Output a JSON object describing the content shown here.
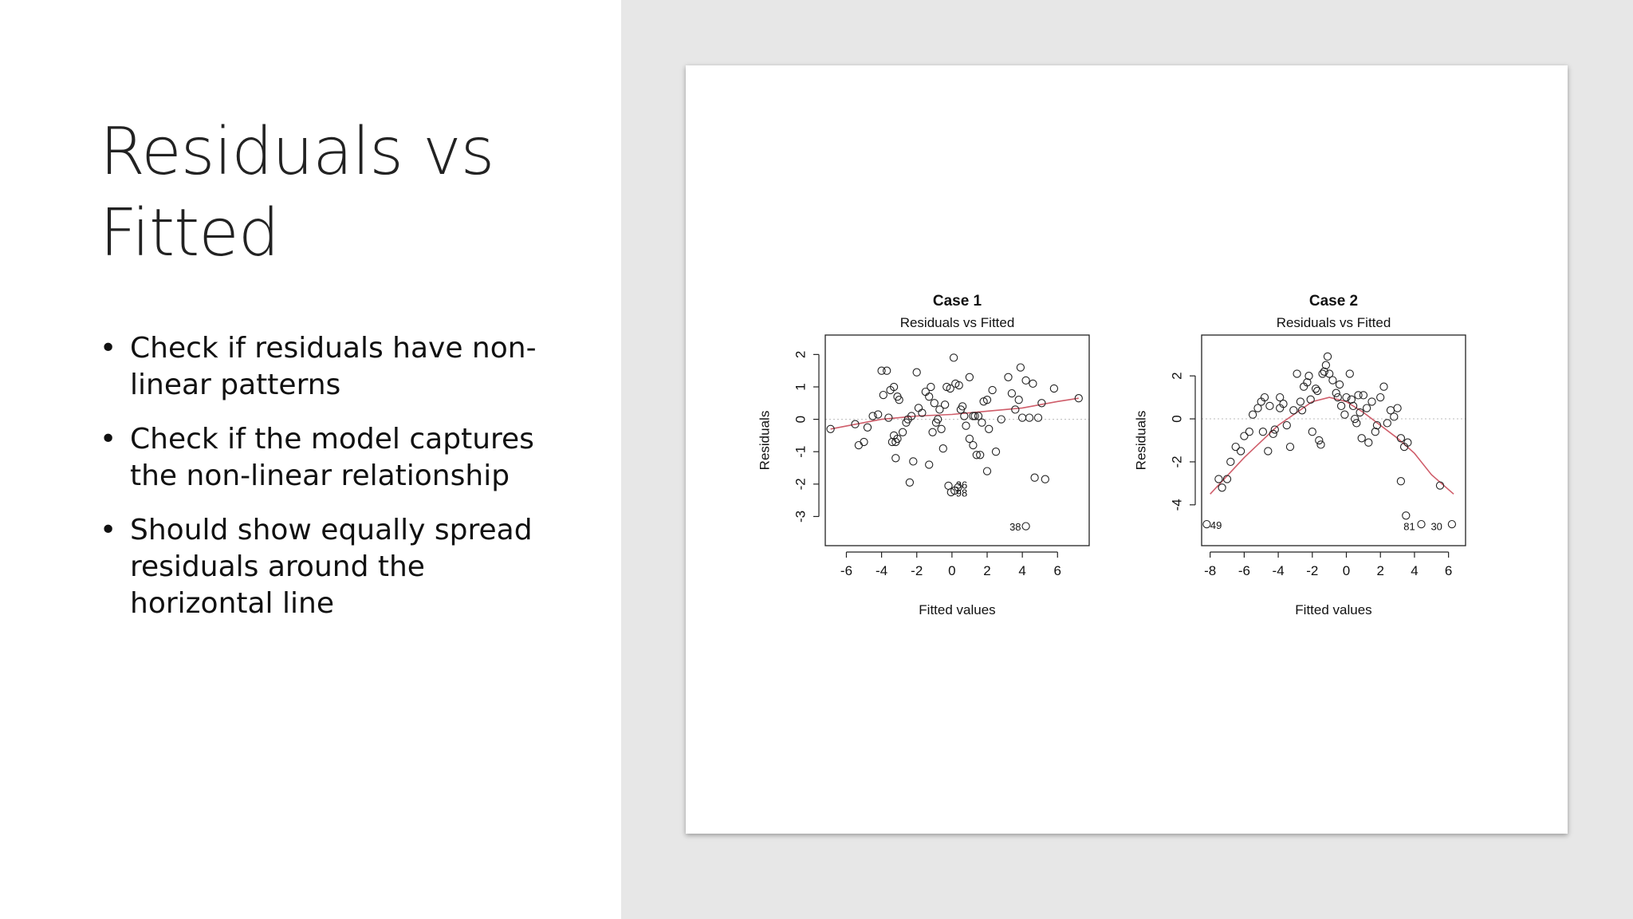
{
  "slide": {
    "title_line1": "Residuals vs",
    "title_line2": "Fitted",
    "bullet_glyph": "•",
    "bullets": [
      {
        "line1": "Check if residuals have non-",
        "line2": "linear patterns"
      },
      {
        "line1": "Check if the model captures",
        "line2": "the non-linear relationship"
      },
      {
        "line1": "Should show equally spread",
        "line2": "residuals around the",
        "line3": "horizontal line"
      }
    ]
  },
  "chart_data": [
    {
      "type": "scatter",
      "heading": "Case 1",
      "title": "Residuals vs Fitted",
      "xlabel": "Fitted values",
      "ylabel": "Residuals",
      "xlim": [
        -7.2,
        7.8
      ],
      "ylim": [
        -3.9,
        2.6
      ],
      "xticks": [
        -6,
        -4,
        -2,
        0,
        2,
        4,
        6
      ],
      "yticks": [
        -3,
        -2,
        -1,
        0,
        1,
        2
      ],
      "points": [
        [
          -6.9,
          -0.3
        ],
        [
          -5.5,
          -0.15
        ],
        [
          -5.3,
          -0.8
        ],
        [
          -5.0,
          -0.7
        ],
        [
          -4.8,
          -0.25
        ],
        [
          -4.5,
          0.1
        ],
        [
          -4.2,
          0.15
        ],
        [
          -4.0,
          1.5
        ],
        [
          -3.7,
          1.5
        ],
        [
          -3.9,
          0.75
        ],
        [
          -3.5,
          0.9
        ],
        [
          -3.3,
          1.0
        ],
        [
          -3.1,
          0.7
        ],
        [
          -3.0,
          0.6
        ],
        [
          -3.3,
          -0.5
        ],
        [
          -3.2,
          -0.7
        ],
        [
          -3.4,
          -0.7
        ],
        [
          -3.1,
          -0.6
        ],
        [
          -3.2,
          -1.2
        ],
        [
          -2.8,
          -0.4
        ],
        [
          -2.5,
          0.0
        ],
        [
          -2.3,
          0.1
        ],
        [
          -2.2,
          -1.3
        ],
        [
          -2.4,
          -1.95
        ],
        [
          -2.0,
          1.45
        ],
        [
          -1.9,
          0.35
        ],
        [
          -1.7,
          0.2
        ],
        [
          -1.5,
          0.85
        ],
        [
          -1.3,
          0.7
        ],
        [
          -1.2,
          1.0
        ],
        [
          -1.0,
          0.5
        ],
        [
          -0.8,
          0.0
        ],
        [
          -1.3,
          -1.4
        ],
        [
          -1.1,
          -0.4
        ],
        [
          -0.9,
          -0.1
        ],
        [
          -0.6,
          -0.3
        ],
        [
          -0.5,
          -0.9
        ],
        [
          -0.4,
          0.45
        ],
        [
          -0.3,
          1.0
        ],
        [
          -0.1,
          0.95
        ],
        [
          0.1,
          1.9
        ],
        [
          0.2,
          1.1
        ],
        [
          0.4,
          1.05
        ],
        [
          0.5,
          0.3
        ],
        [
          0.6,
          0.4
        ],
        [
          0.8,
          -0.2
        ],
        [
          0.7,
          0.1
        ],
        [
          1.0,
          -0.6
        ],
        [
          1.2,
          -0.8
        ],
        [
          1.3,
          0.1
        ],
        [
          1.5,
          0.1
        ],
        [
          1.7,
          -0.1
        ],
        [
          1.8,
          0.55
        ],
        [
          2.0,
          0.6
        ],
        [
          2.1,
          -0.3
        ],
        [
          1.4,
          -1.1
        ],
        [
          1.6,
          -1.1
        ],
        [
          2.0,
          -1.6
        ],
        [
          2.5,
          -1.0
        ],
        [
          2.8,
          0.0
        ],
        [
          3.2,
          1.3
        ],
        [
          3.4,
          0.8
        ],
        [
          3.6,
          0.3
        ],
        [
          3.8,
          0.6
        ],
        [
          3.9,
          1.6
        ],
        [
          4.0,
          0.05
        ],
        [
          4.2,
          1.2
        ],
        [
          4.4,
          0.05
        ],
        [
          4.6,
          1.1
        ],
        [
          4.9,
          0.05
        ],
        [
          5.1,
          0.5
        ],
        [
          4.7,
          -1.8
        ],
        [
          5.3,
          -1.85
        ],
        [
          5.8,
          0.95
        ],
        [
          7.2,
          0.65
        ],
        [
          -0.2,
          -2.05
        ],
        [
          -0.05,
          -2.25
        ],
        [
          0.15,
          -2.2
        ],
        [
          0.35,
          -2.1
        ],
        [
          4.2,
          -3.3
        ],
        [
          1.2,
          0.1
        ],
        [
          -0.7,
          0.3
        ],
        [
          2.3,
          0.9
        ],
        [
          -2.6,
          -0.1
        ],
        [
          1.0,
          1.3
        ],
        [
          -3.6,
          0.05
        ]
      ],
      "smooth": [
        [
          -6.9,
          -0.3
        ],
        [
          -4,
          0.0
        ],
        [
          -2,
          0.1
        ],
        [
          0,
          0.15
        ],
        [
          2,
          0.25
        ],
        [
          4,
          0.35
        ],
        [
          6,
          0.55
        ],
        [
          7.2,
          0.65
        ]
      ],
      "point_labels": [
        {
          "text": "36",
          "x": 0.55,
          "y": -2.05
        },
        {
          "text": "98",
          "x": 0.55,
          "y": -2.3
        },
        {
          "text": "38",
          "x": 3.6,
          "y": -3.35
        }
      ]
    },
    {
      "type": "scatter",
      "heading": "Case 2",
      "title": "Residuals vs Fitted",
      "xlabel": "Fitted values",
      "ylabel": "Residuals",
      "xlim": [
        -8.5,
        7.0
      ],
      "ylim": [
        -5.9,
        3.9
      ],
      "xticks": [
        -8,
        -6,
        -4,
        -2,
        0,
        2,
        4,
        6
      ],
      "yticks": [
        -4,
        -2,
        0,
        2
      ],
      "points": [
        [
          -8.2,
          -4.9
        ],
        [
          -7.5,
          -2.8
        ],
        [
          -7.3,
          -3.2
        ],
        [
          -7.0,
          -2.8
        ],
        [
          -6.8,
          -2.0
        ],
        [
          -6.5,
          -1.3
        ],
        [
          -6.2,
          -1.5
        ],
        [
          -6.0,
          -0.8
        ],
        [
          -5.7,
          -0.6
        ],
        [
          -5.5,
          0.2
        ],
        [
          -5.2,
          0.5
        ],
        [
          -5.0,
          0.8
        ],
        [
          -4.8,
          1.0
        ],
        [
          -4.5,
          0.6
        ],
        [
          -4.3,
          -0.7
        ],
        [
          -4.6,
          -1.5
        ],
        [
          -4.2,
          -0.5
        ],
        [
          -3.9,
          0.5
        ],
        [
          -3.7,
          0.7
        ],
        [
          -3.5,
          -0.3
        ],
        [
          -3.3,
          -1.3
        ],
        [
          -3.1,
          0.4
        ],
        [
          -2.9,
          2.1
        ],
        [
          -2.7,
          0.8
        ],
        [
          -2.5,
          1.5
        ],
        [
          -2.3,
          1.7
        ],
        [
          -2.1,
          0.9
        ],
        [
          -2.2,
          2.0
        ],
        [
          -2.0,
          -0.6
        ],
        [
          -1.8,
          1.4
        ],
        [
          -1.6,
          -1.0
        ],
        [
          -1.5,
          -1.2
        ],
        [
          -1.4,
          2.1
        ],
        [
          -1.2,
          2.5
        ],
        [
          -1.1,
          2.9
        ],
        [
          -1.0,
          2.1
        ],
        [
          -0.8,
          1.8
        ],
        [
          -0.6,
          1.2
        ],
        [
          -0.5,
          1.0
        ],
        [
          -0.3,
          0.6
        ],
        [
          -0.1,
          0.2
        ],
        [
          0.0,
          1.0
        ],
        [
          0.2,
          2.1
        ],
        [
          0.3,
          0.9
        ],
        [
          0.5,
          0.0
        ],
        [
          0.6,
          -0.2
        ],
        [
          0.8,
          0.3
        ],
        [
          1.0,
          1.1
        ],
        [
          1.2,
          0.5
        ],
        [
          1.3,
          -1.1
        ],
        [
          1.5,
          0.8
        ],
        [
          1.7,
          -0.6
        ],
        [
          2.0,
          1.0
        ],
        [
          2.2,
          1.5
        ],
        [
          2.4,
          -0.2
        ],
        [
          2.6,
          0.4
        ],
        [
          3.0,
          0.5
        ],
        [
          3.2,
          -0.9
        ],
        [
          3.4,
          -1.3
        ],
        [
          3.6,
          -1.1
        ],
        [
          3.2,
          -2.9
        ],
        [
          3.5,
          -4.5
        ],
        [
          4.4,
          -4.9
        ],
        [
          5.5,
          -3.1
        ],
        [
          6.2,
          -4.9
        ],
        [
          -1.7,
          1.3
        ],
        [
          -0.4,
          1.6
        ],
        [
          0.7,
          1.1
        ],
        [
          1.8,
          -0.3
        ],
        [
          2.8,
          0.1
        ],
        [
          -2.6,
          0.4
        ],
        [
          -3.9,
          1.0
        ],
        [
          -4.9,
          -0.6
        ],
        [
          0.4,
          0.6
        ],
        [
          -1.3,
          2.2
        ],
        [
          0.9,
          -0.9
        ]
      ],
      "smooth": [
        [
          -8.0,
          -3.5
        ],
        [
          -6,
          -1.8
        ],
        [
          -4,
          -0.3
        ],
        [
          -2,
          0.8
        ],
        [
          -1,
          1.0
        ],
        [
          0,
          0.8
        ],
        [
          1,
          0.3
        ],
        [
          2,
          -0.3
        ],
        [
          3,
          -0.9
        ],
        [
          4,
          -1.6
        ],
        [
          5,
          -2.6
        ],
        [
          6.3,
          -3.5
        ]
      ],
      "point_labels": [
        {
          "text": "49",
          "x": -7.65,
          "y": -5.0
        },
        {
          "text": "81",
          "x": 3.7,
          "y": -5.05
        },
        {
          "text": "30",
          "x": 5.3,
          "y": -5.05
        }
      ]
    }
  ],
  "colors": {
    "smooth_line": "#cf5d6a",
    "points": "#222222",
    "zero_line": "#bbbbbb",
    "right_panel_bg": "#e7e7e7"
  }
}
